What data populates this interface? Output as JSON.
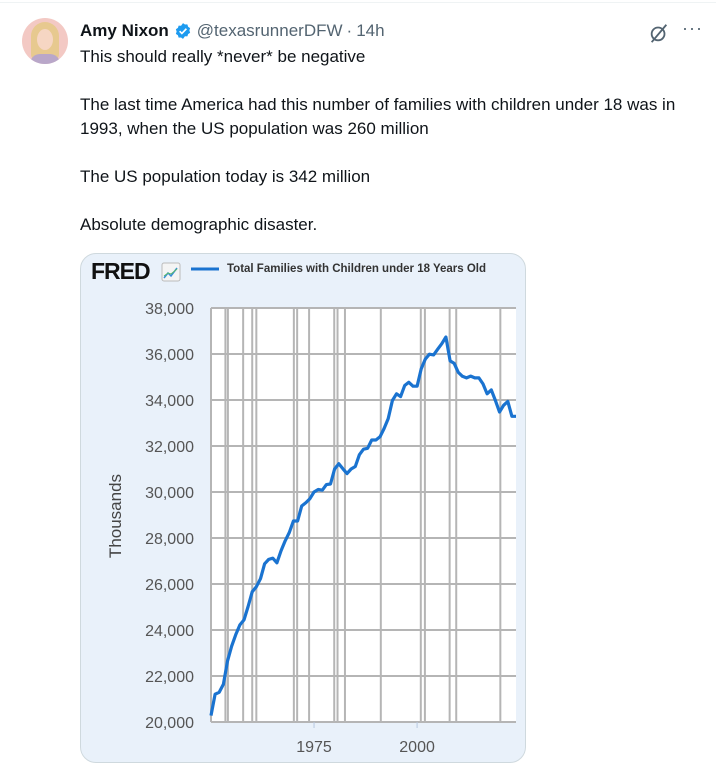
{
  "tweet": {
    "author_name": "Amy Nixon",
    "handle": "@texasrunnerDFW",
    "separator": "·",
    "time": "14h",
    "more_label": "···",
    "lines": [
      "This should really *never* be negative",
      "The last time America had this number of families with children under 18 was in 1993, when the US population was 260 million",
      "The US population today is 342 million",
      "Absolute demographic disaster."
    ]
  },
  "colors": {
    "accent": "#1d9bf0",
    "line": "#1a73d0",
    "card_bg": "#e9f1fa",
    "grid": "#b5b5b5"
  },
  "chart_data": {
    "type": "line",
    "source_logo": "FRED",
    "title": "Total Families with Children under 18 Years Old",
    "xlabel": "",
    "ylabel": "Thousands",
    "xlim": [
      1950,
      2024
    ],
    "ylim": [
      20000,
      38000
    ],
    "yticks": [
      "38,000",
      "36,000",
      "34,000",
      "32,000",
      "30,000",
      "28,000",
      "26,000",
      "24,000",
      "22,000",
      "20,000"
    ],
    "ytick_values": [
      38000,
      36000,
      34000,
      32000,
      30000,
      28000,
      26000,
      24000,
      22000,
      20000
    ],
    "xticks": [
      {
        "label": "1975",
        "value": 1975
      },
      {
        "label": "2000",
        "value": 2000
      }
    ],
    "grid": true,
    "legend": "top",
    "vertical_markers": [
      1953.5,
      1954.1,
      1957.8,
      1960,
      1961,
      1970.1,
      1970.9,
      1973.8,
      1979.9,
      1980.7,
      1982.5,
      1991.2,
      2000.9,
      2001.9,
      2007.9,
      2009.5,
      2020.2
    ],
    "series": [
      {
        "name": "Total Families with Children under 18 Years Old",
        "x": [
          1950,
          1951,
          1952,
          1953,
          1954,
          1955,
          1956,
          1957,
          1958,
          1959,
          1960,
          1961,
          1962,
          1963,
          1964,
          1965,
          1966,
          1967,
          1968,
          1969,
          1970,
          1971,
          1972,
          1973,
          1974,
          1975,
          1976,
          1977,
          1978,
          1979,
          1980,
          1981,
          1982,
          1983,
          1984,
          1985,
          1986,
          1987,
          1988,
          1989,
          1990,
          1991,
          1992,
          1993,
          1994,
          1995,
          1996,
          1997,
          1998,
          1999,
          2000,
          2001,
          2002,
          2003,
          2004,
          2005,
          2006,
          2007,
          2008,
          2009,
          2010,
          2011,
          2012,
          2013,
          2014,
          2015,
          2016,
          2017,
          2018,
          2019,
          2020,
          2021,
          2022,
          2023,
          2024
        ],
        "values": [
          20280,
          21210,
          21290,
          21640,
          22650,
          23290,
          23790,
          24220,
          24440,
          25020,
          25660,
          25880,
          26230,
          26880,
          27070,
          27120,
          26920,
          27450,
          27880,
          28240,
          28740,
          28740,
          29390,
          29530,
          29710,
          30000,
          30110,
          30080,
          30320,
          30350,
          31000,
          31230,
          31010,
          30800,
          31000,
          31110,
          31620,
          31860,
          31900,
          32260,
          32260,
          32400,
          32760,
          33190,
          33980,
          34270,
          34150,
          34630,
          34770,
          34600,
          34600,
          35350,
          35780,
          35990,
          35960,
          36210,
          36450,
          36740,
          35700,
          35590,
          35200,
          35030,
          34960,
          35040,
          34960,
          34960,
          34700,
          34270,
          34440,
          33980,
          33480,
          33770,
          33940,
          33290,
          33290
        ]
      }
    ]
  }
}
